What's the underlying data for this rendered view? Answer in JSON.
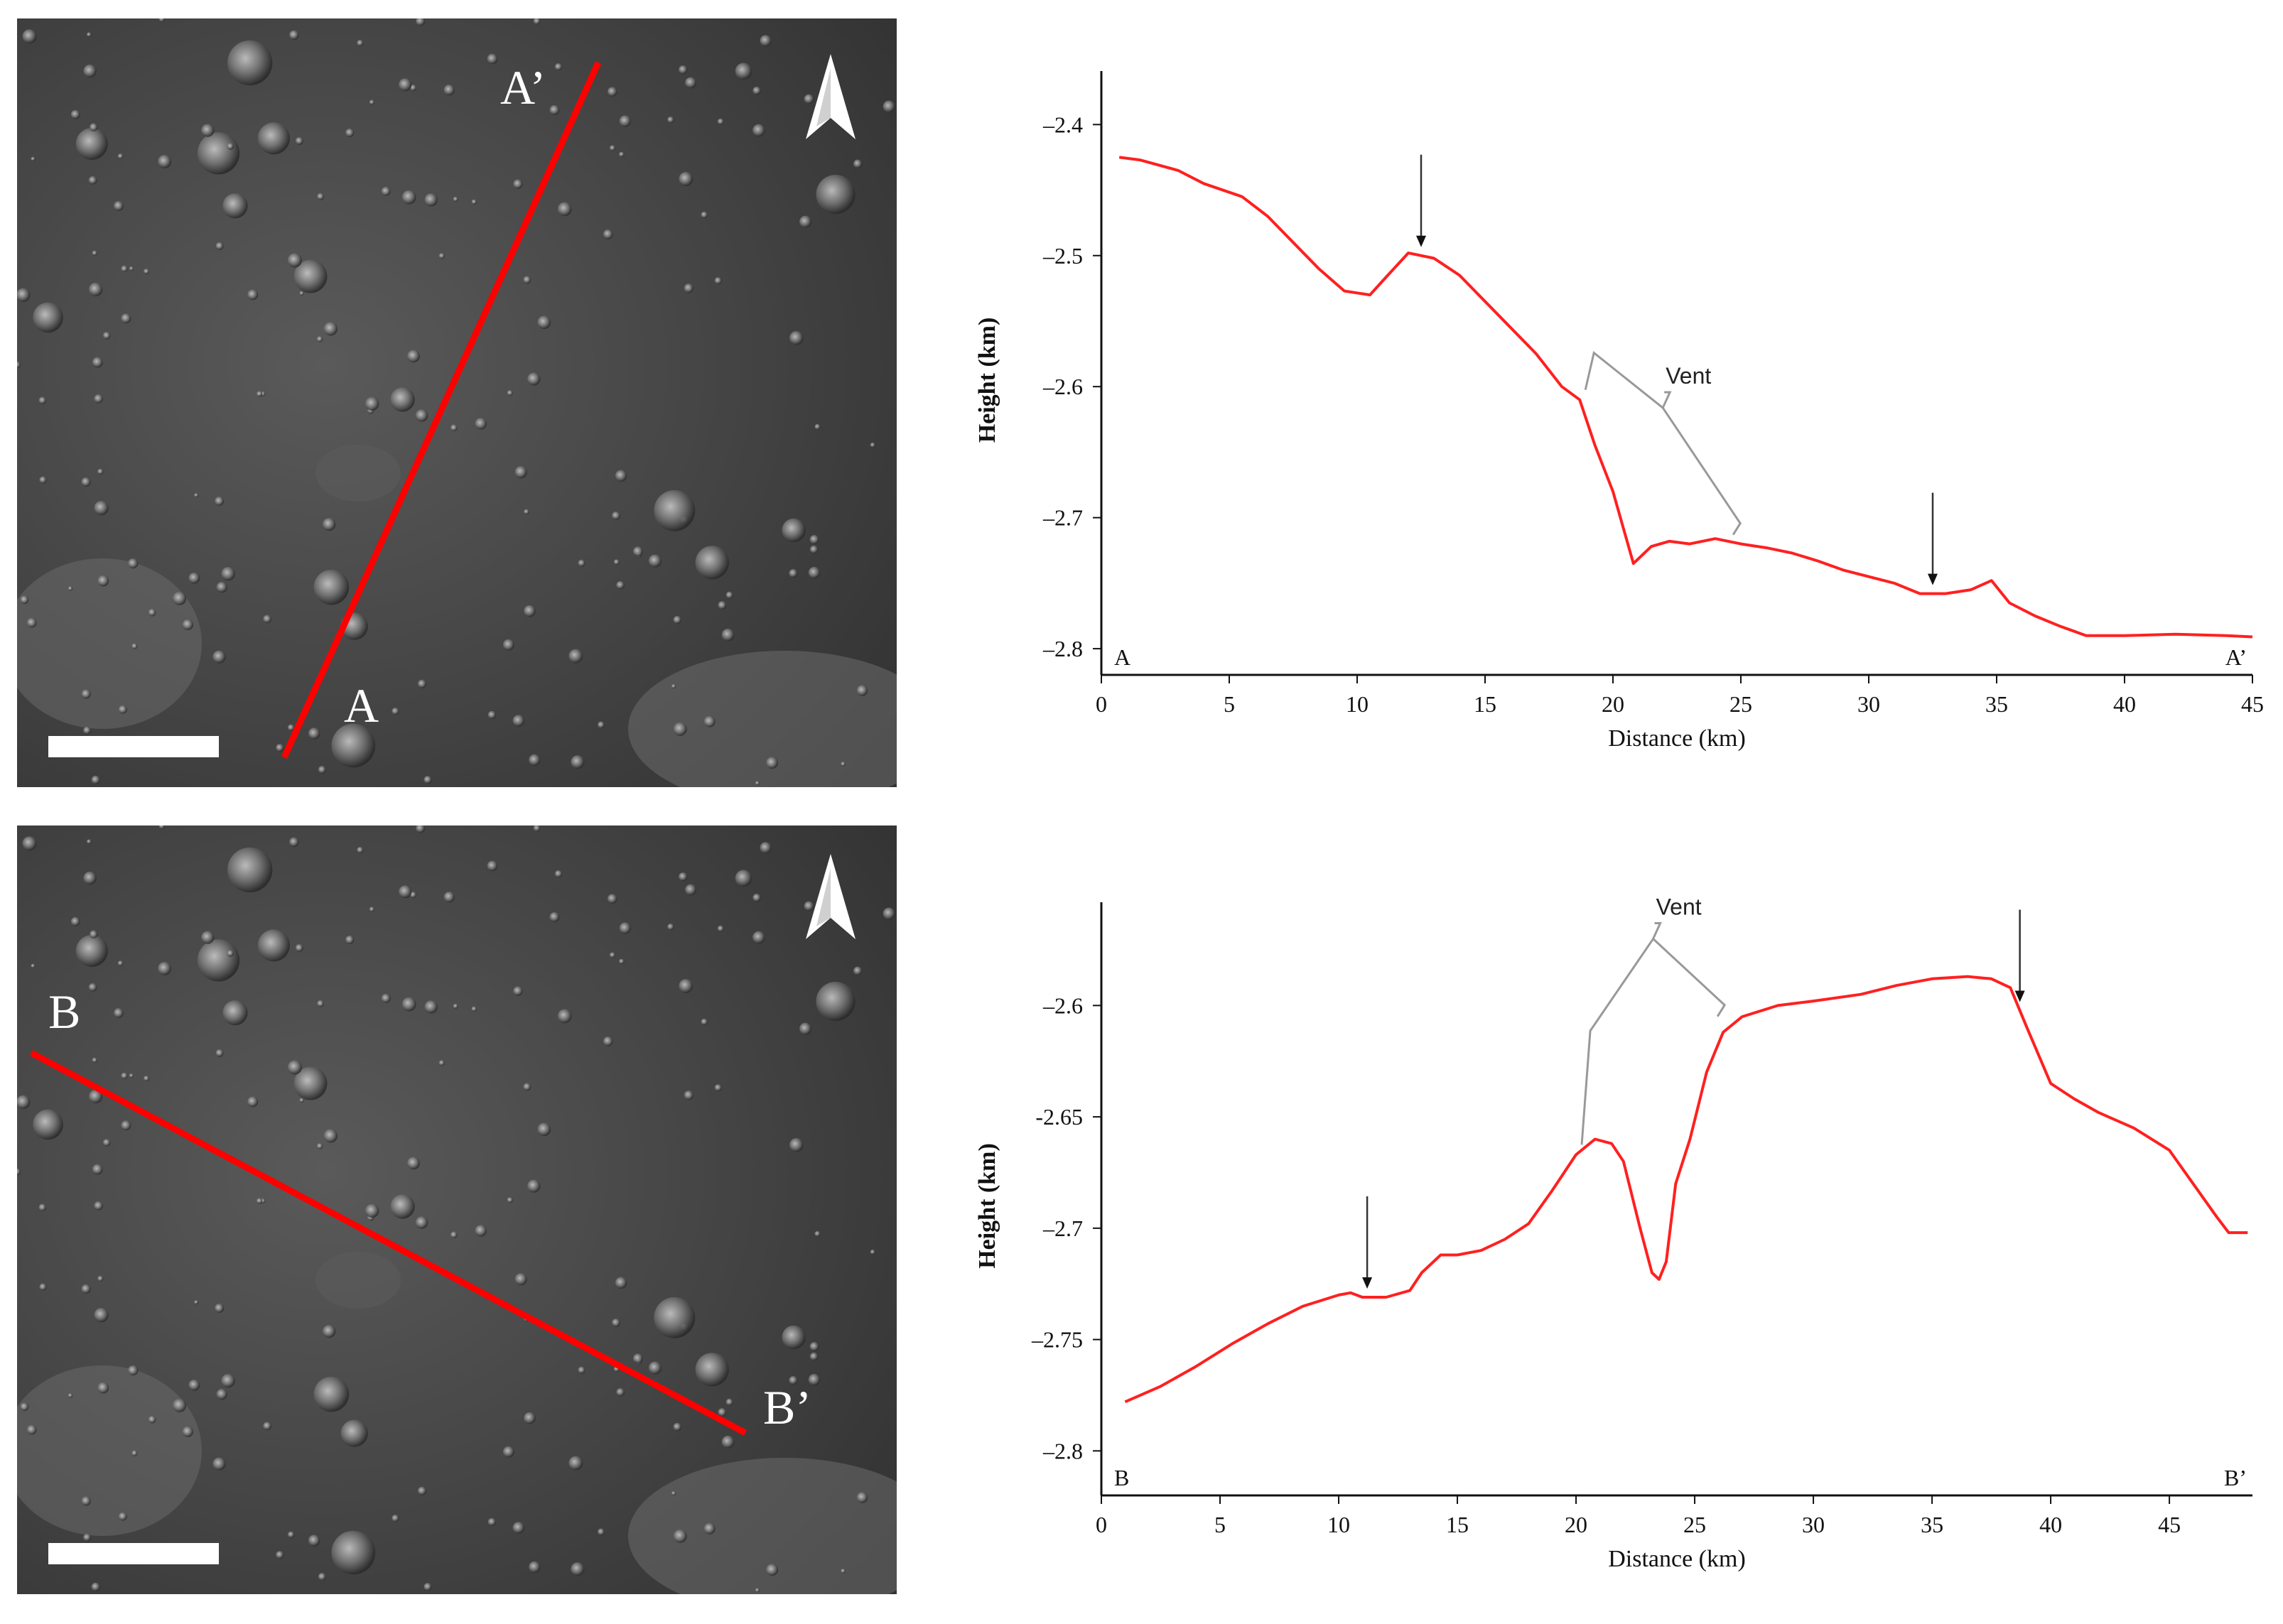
{
  "panels": [
    {
      "start_label": "A",
      "end_label": "A’",
      "profile_color": "#ff0000"
    },
    {
      "start_label": "B",
      "end_label": "B’",
      "profile_color": "#ff0000"
    }
  ],
  "chart_data": [
    {
      "type": "line",
      "xlabel": "Distance (km)",
      "ylabel": "Height (km)",
      "xlim": [
        0,
        45
      ],
      "ylim": [
        -2.82,
        -2.37
      ],
      "xticks": [
        0,
        5,
        10,
        15,
        20,
        25,
        30,
        35,
        40,
        45
      ],
      "yticks": [
        -2.4,
        -2.5,
        -2.6,
        -2.7,
        -2.8
      ],
      "ytick_labels": [
        "–2.4",
        "–2.5",
        "–2.6",
        "–2.7",
        "–2.8"
      ],
      "start_label": "A",
      "end_label": "A’",
      "annotation": "Vent",
      "vent_range": [
        18.7,
        25.2
      ],
      "arrows": [
        12.5,
        32.5
      ],
      "series": [
        {
          "color": "#ff2020",
          "x": [
            0.7,
            1.5,
            3,
            4,
            5.5,
            6.5,
            7.5,
            8.5,
            9.5,
            10.5,
            11.2,
            12,
            13,
            14,
            15,
            16,
            17,
            18,
            18.7,
            19.3,
            20,
            20.8,
            21.5,
            22.2,
            23,
            24,
            25,
            26,
            27,
            28,
            29,
            30,
            31,
            32,
            33,
            34,
            34.8,
            35.5,
            36.5,
            37.5,
            38.5,
            40,
            42,
            44,
            45
          ],
          "y": [
            -2.425,
            -2.427,
            -2.435,
            -2.445,
            -2.455,
            -2.47,
            -2.49,
            -2.51,
            -2.527,
            -2.53,
            -2.515,
            -2.498,
            -2.502,
            -2.515,
            -2.535,
            -2.555,
            -2.575,
            -2.6,
            -2.61,
            -2.645,
            -2.68,
            -2.735,
            -2.722,
            -2.718,
            -2.72,
            -2.716,
            -2.72,
            -2.723,
            -2.727,
            -2.733,
            -2.74,
            -2.745,
            -2.75,
            -2.758,
            -2.758,
            -2.755,
            -2.748,
            -2.765,
            -2.775,
            -2.783,
            -2.79,
            -2.79,
            -2.789,
            -2.79,
            -2.791
          ]
        }
      ]
    },
    {
      "type": "line",
      "xlabel": "Distance (km)",
      "ylabel": "Height (km)",
      "xlim": [
        0,
        48.5
      ],
      "ylim": [
        -2.82,
        -2.56
      ],
      "xticks": [
        0,
        5,
        10,
        15,
        20,
        25,
        30,
        35,
        40,
        45
      ],
      "yticks": [
        -2.6,
        -2.65,
        -2.7,
        -2.75,
        -2.8
      ],
      "ytick_labels": [
        "–2.6",
        "-2.65",
        "–2.7",
        "–2.75",
        "–2.8"
      ],
      "start_label": "B",
      "end_label": "B’",
      "annotation": "Vent",
      "vent_range": [
        20,
        26.5
      ],
      "arrows": [
        11.2,
        38.7
      ],
      "series": [
        {
          "color": "#ff2020",
          "x": [
            1,
            2.5,
            4,
            5.5,
            7,
            8.5,
            10,
            10.5,
            11,
            12,
            13,
            13.5,
            14.3,
            15,
            16,
            17,
            18,
            19,
            20,
            20.8,
            21.5,
            22,
            22.7,
            23.2,
            23.5,
            23.8,
            24.2,
            24.8,
            25.5,
            26.2,
            27,
            28.5,
            30,
            32,
            33.5,
            35,
            36.5,
            37.5,
            38.3,
            39,
            40,
            41,
            42,
            43.5,
            45,
            46,
            47,
            47.5,
            48.3
          ],
          "y": [
            -2.778,
            -2.771,
            -2.762,
            -2.752,
            -2.743,
            -2.735,
            -2.73,
            -2.729,
            -2.731,
            -2.731,
            -2.728,
            -2.72,
            -2.712,
            -2.712,
            -2.71,
            -2.705,
            -2.698,
            -2.683,
            -2.667,
            -2.66,
            -2.662,
            -2.67,
            -2.7,
            -2.72,
            -2.723,
            -2.715,
            -2.68,
            -2.66,
            -2.63,
            -2.612,
            -2.605,
            -2.6,
            -2.598,
            -2.595,
            -2.591,
            -2.588,
            -2.587,
            -2.588,
            -2.592,
            -2.61,
            -2.635,
            -2.642,
            -2.648,
            -2.655,
            -2.665,
            -2.68,
            -2.695,
            -2.702,
            -2.702
          ]
        }
      ]
    }
  ]
}
